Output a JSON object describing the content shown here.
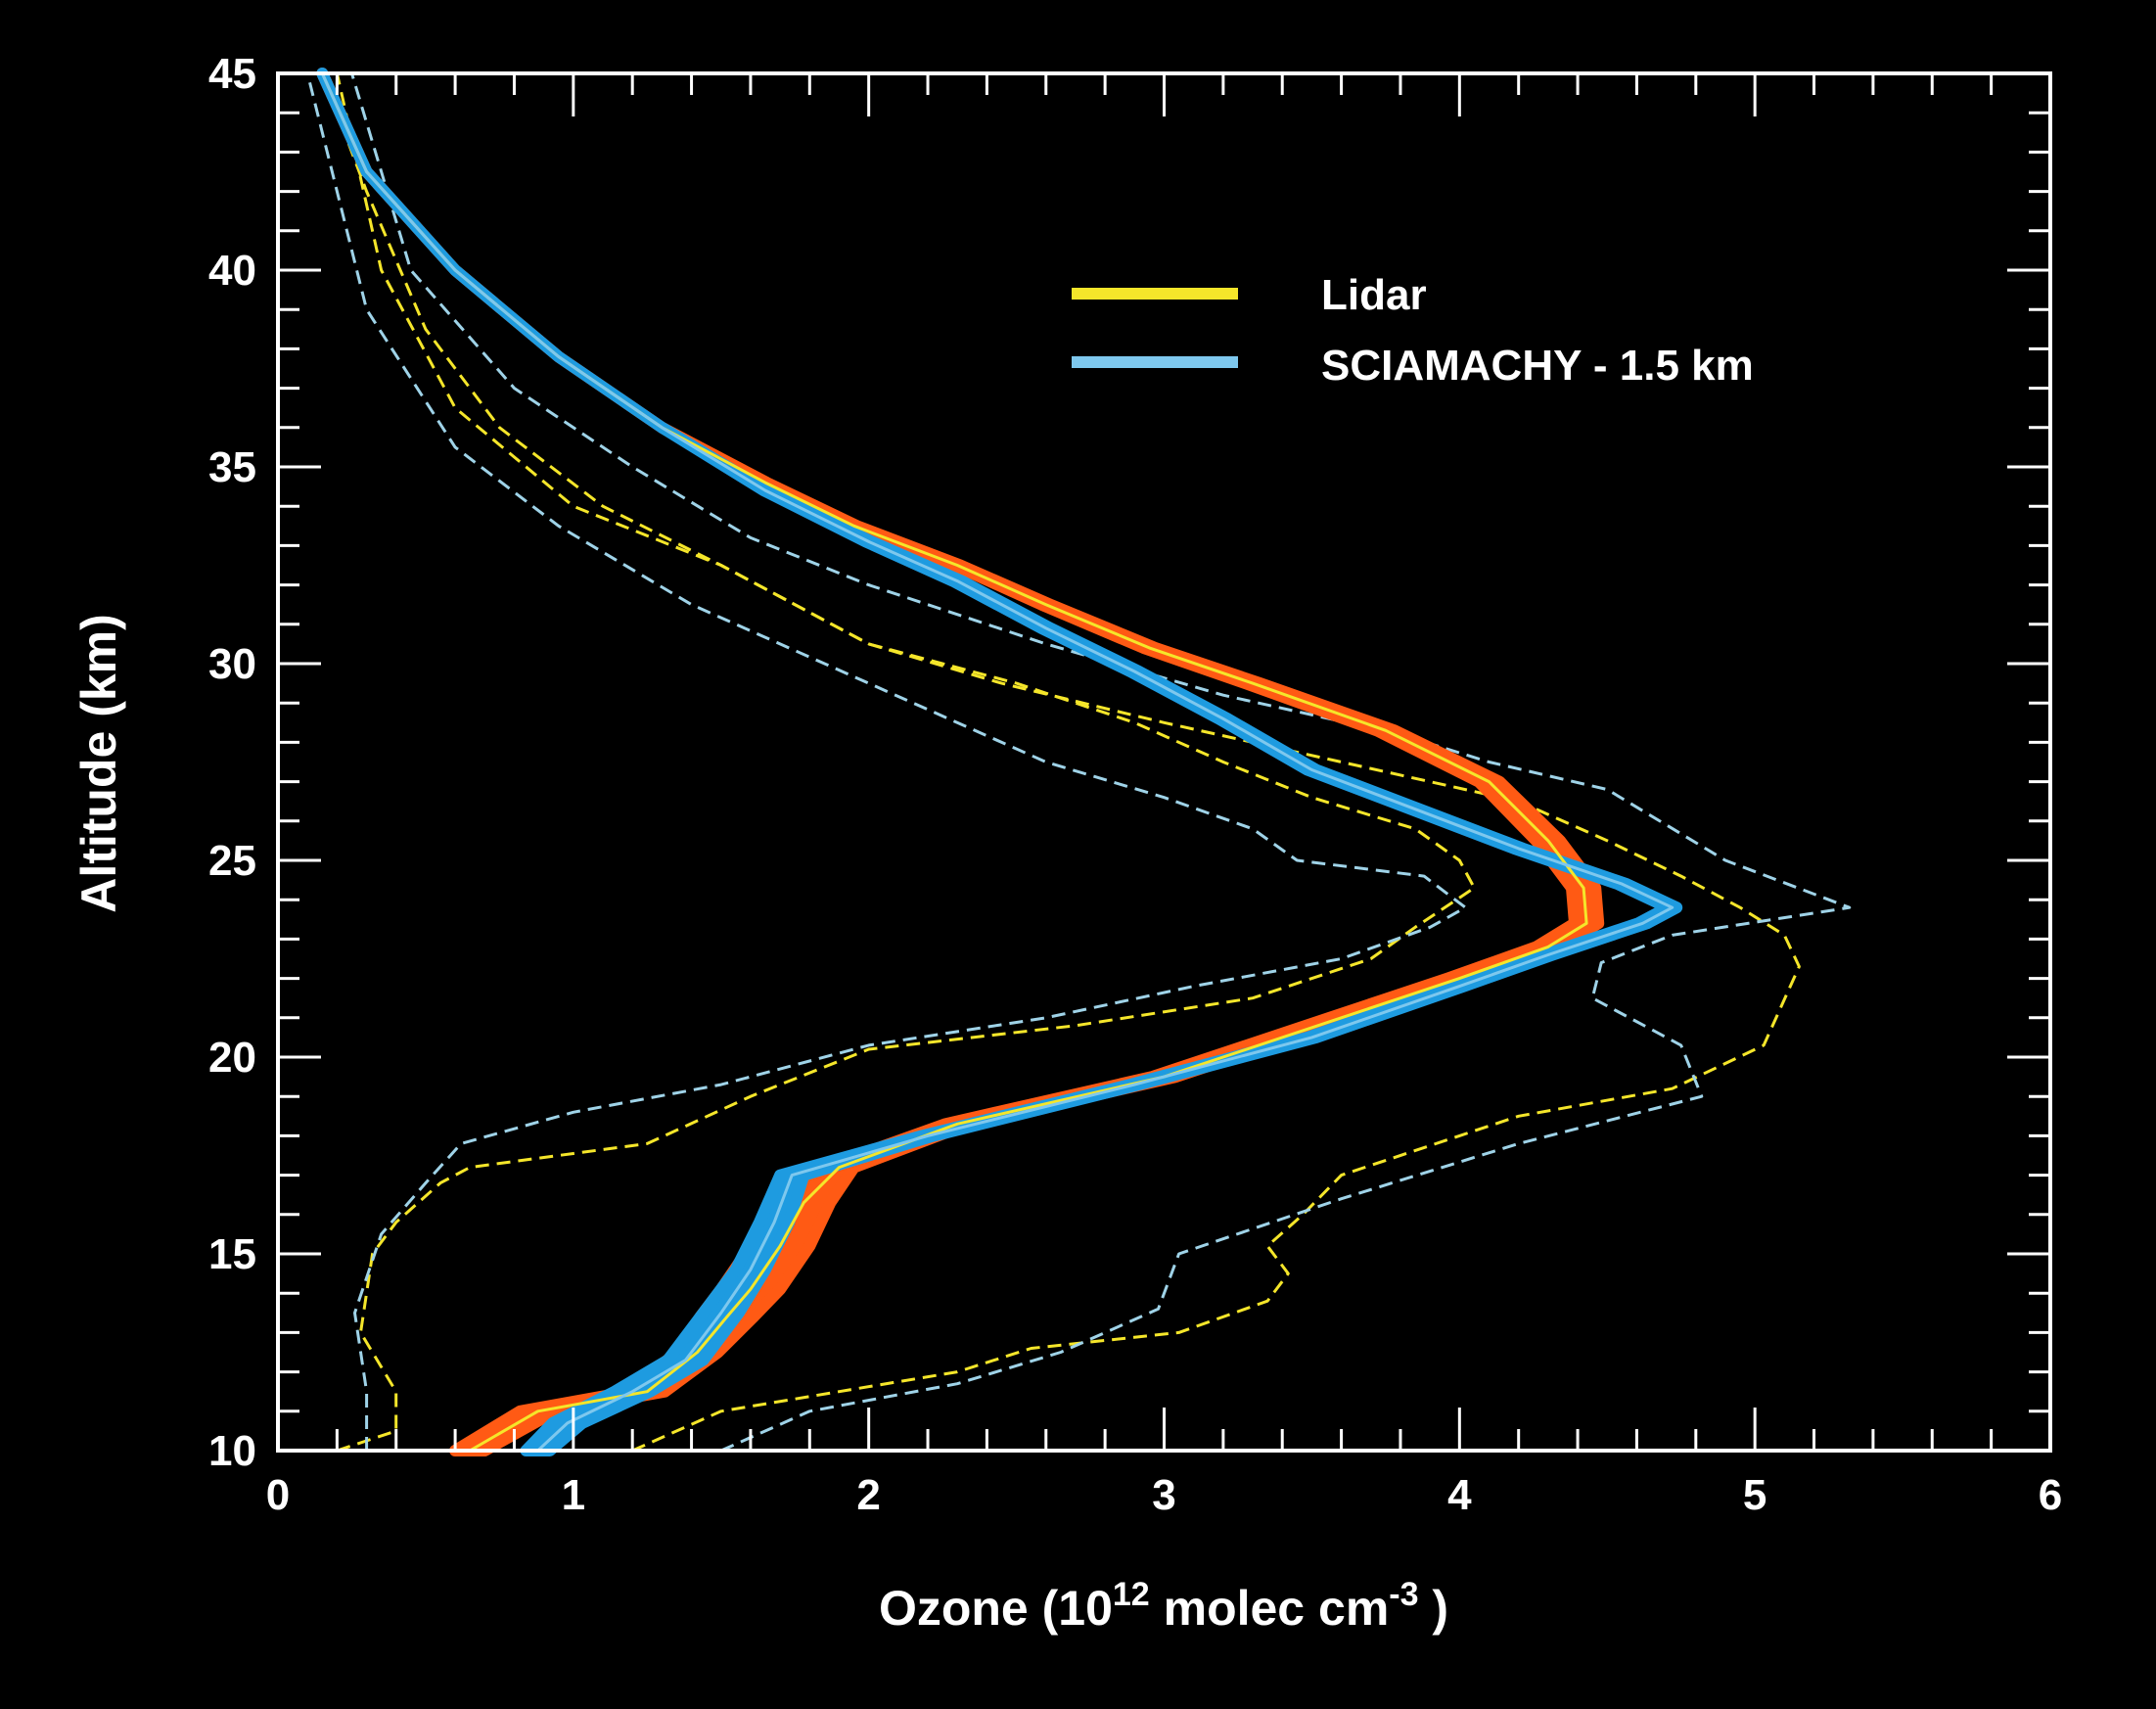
{
  "chart_data": {
    "type": "line",
    "title": "",
    "xlabel": {
      "prefix": "Ozone (10",
      "exp1": "12",
      "mid": " molec cm",
      "exp2": "-3",
      "suffix": " )"
    },
    "ylabel": "Altitude (km)",
    "xlim": [
      0,
      6
    ],
    "ylim": [
      10,
      45
    ],
    "xticks": [
      0,
      1,
      2,
      3,
      4,
      5,
      6
    ],
    "yticks": [
      10,
      15,
      20,
      25,
      30,
      35,
      40,
      45
    ],
    "xtick_labels": [
      "0",
      "1",
      "2",
      "3",
      "4",
      "5",
      "6"
    ],
    "ytick_labels": [
      "10",
      "15",
      "20",
      "25",
      "30",
      "35",
      "40",
      "45"
    ],
    "legend_position": "top-right",
    "legend": [
      {
        "label": "Lidar",
        "color": "#F5E62A"
      },
      {
        "label": "SCIAMACHY - 1.5 km",
        "color": "#7EC8EE"
      }
    ],
    "series": [
      {
        "name": "Lidar",
        "color": "#F5E62A",
        "band_color": "#FF5A14",
        "x": [
          0.65,
          0.88,
          1.25,
          1.42,
          1.52,
          1.6,
          1.7,
          1.78,
          1.9,
          2.3,
          3.0,
          3.6,
          4.0,
          4.3,
          4.43,
          4.42,
          4.3,
          4.1,
          3.75,
          3.3,
          2.95,
          2.6,
          2.3,
          1.95,
          1.65,
          1.3,
          0.95,
          0.6,
          0.3,
          0.15
        ],
        "y": [
          10,
          11,
          11.5,
          12.5,
          13.4,
          14.1,
          15.2,
          16.3,
          17.2,
          18.3,
          19.5,
          21.0,
          22.0,
          22.8,
          23.4,
          24.3,
          25.5,
          27.0,
          28.3,
          29.5,
          30.4,
          31.5,
          32.5,
          33.5,
          34.6,
          36.0,
          37.8,
          40.0,
          42.5,
          45
        ],
        "band_halfwidth": [
          0.05,
          0.06,
          0.06,
          0.07,
          0.09,
          0.1,
          0.1,
          0.09,
          0.05,
          0.04,
          0.04,
          0.04,
          0.04,
          0.04,
          0.04,
          0.04,
          0.04,
          0.035,
          0.03,
          0.025,
          0.02,
          0.015,
          0.01,
          0.01,
          0.005,
          0,
          0,
          0,
          0,
          0
        ]
      },
      {
        "name": "SCIAMACHY - 1.5 km",
        "color": "#7EC8EE",
        "band_color": "#1E9BE0",
        "x": [
          0.88,
          0.98,
          1.2,
          1.38,
          1.5,
          1.6,
          1.68,
          1.74,
          2.2,
          2.9,
          3.5,
          4.0,
          4.3,
          4.62,
          4.72,
          4.55,
          4.2,
          3.85,
          3.5,
          3.2,
          2.9,
          2.6,
          2.3,
          2.0,
          1.65,
          1.3,
          0.95,
          0.6,
          0.3,
          0.15
        ],
        "y": [
          10,
          10.7,
          11.5,
          12.3,
          13.5,
          14.6,
          15.8,
          17.0,
          18.0,
          19.3,
          20.5,
          21.8,
          22.6,
          23.4,
          23.8,
          24.4,
          25.3,
          26.3,
          27.3,
          28.6,
          29.8,
          30.9,
          32.1,
          33.1,
          34.4,
          36.0,
          37.8,
          40.0,
          42.5,
          45
        ],
        "band_halfwidth": [
          0.04,
          0.05,
          0.06,
          0.06,
          0.06,
          0.05,
          0.05,
          0.04,
          0.02,
          0.015,
          0.015,
          0.015,
          0.015,
          0.015,
          0.015,
          0.015,
          0.015,
          0.015,
          0.015,
          0.015,
          0.015,
          0.015,
          0.015,
          0.01,
          0.005,
          0,
          0,
          0,
          0,
          0
        ]
      }
    ],
    "envelopes": [
      {
        "name": "Lidar lower bound",
        "color": "#F5E62A",
        "x": [
          0.2,
          0.4,
          0.4,
          0.28,
          0.32,
          0.4,
          0.55,
          0.65,
          1.25,
          1.6,
          2.0,
          2.7,
          3.3,
          3.7,
          3.85,
          4.05,
          4.0,
          3.85,
          3.5,
          3.2,
          2.9,
          2.5,
          2.0,
          1.5,
          1.1,
          0.75,
          0.5,
          0.3,
          0.15
        ],
        "y": [
          10,
          10.5,
          11.5,
          13.0,
          15.0,
          15.8,
          16.8,
          17.2,
          17.8,
          19.0,
          20.2,
          20.8,
          21.5,
          22.5,
          23.3,
          24.3,
          25.0,
          25.8,
          26.6,
          27.5,
          28.5,
          29.5,
          30.5,
          32.5,
          34.0,
          36.0,
          38.5,
          42.0,
          45
        ]
      },
      {
        "name": "Lidar upper bound",
        "color": "#F5E62A",
        "x": [
          1.2,
          1.5,
          2.3,
          2.55,
          3.05,
          3.35,
          3.42,
          3.35,
          3.47,
          3.6,
          4.0,
          4.2,
          4.72,
          5.03,
          5.15,
          5.1,
          4.95,
          4.75,
          4.5,
          4.2,
          3.6,
          3.0,
          2.45,
          2.0,
          1.5,
          1.0,
          0.6,
          0.35,
          0.2
        ],
        "y": [
          10,
          11.0,
          12.0,
          12.6,
          13.0,
          13.8,
          14.5,
          15.2,
          16.0,
          17.0,
          18.0,
          18.5,
          19.2,
          20.3,
          22.3,
          23.1,
          23.8,
          24.6,
          25.5,
          26.5,
          27.5,
          28.5,
          29.5,
          30.5,
          32.5,
          34.0,
          36.5,
          40.0,
          45
        ]
      },
      {
        "name": "SCIAMACHY lower bound",
        "color": "#9FD3E8",
        "x": [
          0.3,
          0.3,
          0.26,
          0.35,
          0.5,
          0.62,
          1.0,
          1.5,
          2.0,
          2.6,
          3.1,
          3.6,
          3.9,
          4.02,
          3.88,
          3.45,
          3.3,
          3.0,
          2.6,
          2.0,
          1.4,
          0.95,
          0.6,
          0.3,
          0.1
        ],
        "y": [
          10,
          11.5,
          13.5,
          15.5,
          16.8,
          17.8,
          18.6,
          19.3,
          20.3,
          21.0,
          21.8,
          22.5,
          23.3,
          23.8,
          24.6,
          25.0,
          25.8,
          26.6,
          27.5,
          29.5,
          31.5,
          33.5,
          35.5,
          39.0,
          45
        ]
      },
      {
        "name": "SCIAMACHY upper bound",
        "color": "#9FD3E8",
        "x": [
          1.5,
          1.8,
          2.3,
          2.65,
          2.98,
          3.05,
          3.6,
          4.2,
          4.82,
          4.75,
          4.45,
          4.48,
          4.72,
          5.32,
          4.9,
          4.5,
          4.1,
          3.8,
          3.2,
          2.6,
          2.0,
          1.6,
          1.2,
          0.8,
          0.45,
          0.25
        ],
        "y": [
          10,
          11.0,
          11.7,
          12.5,
          13.6,
          15.0,
          16.4,
          17.8,
          19.0,
          20.3,
          21.5,
          22.4,
          23.1,
          23.8,
          25.0,
          26.8,
          27.5,
          28.2,
          29.2,
          30.5,
          32.0,
          33.2,
          35.0,
          37.0,
          40.0,
          45
        ]
      }
    ]
  }
}
